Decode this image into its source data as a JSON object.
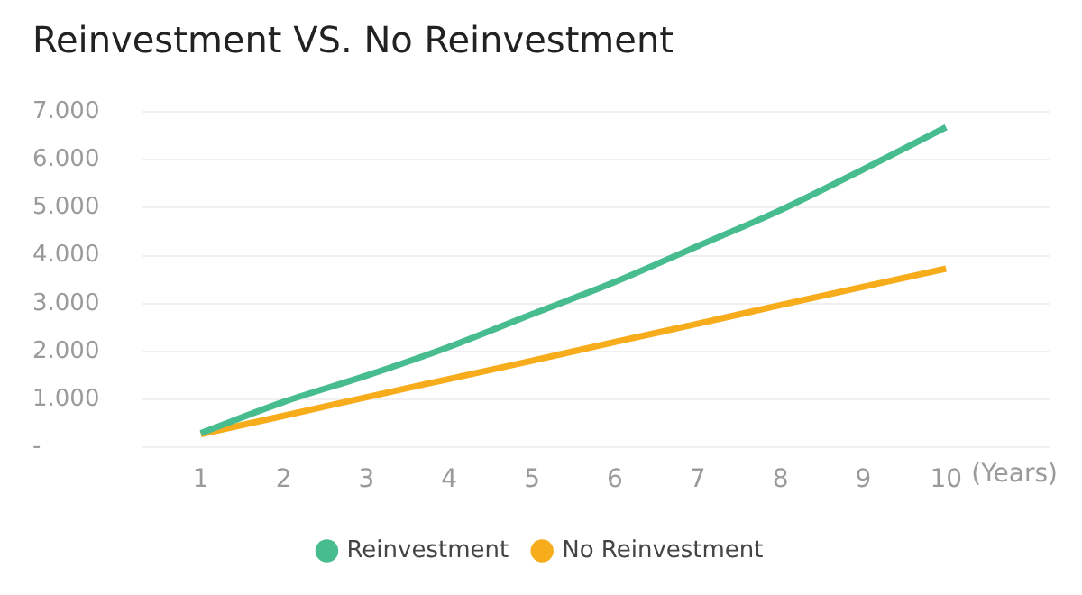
{
  "chart_data": {
    "type": "line",
    "title": "Reinvestment VS. No Reinvestment",
    "xlabel": "(Years)",
    "x": [
      1,
      2,
      3,
      4,
      5,
      6,
      7,
      8,
      9,
      10
    ],
    "series": [
      {
        "name": "Reinvestment",
        "color": "#47bd8f",
        "values": [
          300,
          950,
          1500,
          2100,
          2780,
          3450,
          4200,
          4950,
          5800,
          6680
        ]
      },
      {
        "name": "No Reinvestment",
        "color": "#f7ac1c",
        "values": [
          280,
          660,
          1050,
          1430,
          1810,
          2200,
          2580,
          2970,
          3350,
          3730
        ]
      }
    ],
    "xlim": [
      0.3,
      11.25
    ],
    "xticks": [
      1,
      2,
      3,
      4,
      5,
      6,
      7,
      8,
      9,
      10
    ],
    "ylim": [
      0,
      7000
    ],
    "yticks": [
      {
        "value": 0,
        "label": "-"
      },
      {
        "value": 1000,
        "label": "1.000"
      },
      {
        "value": 2000,
        "label": "2.000"
      },
      {
        "value": 3000,
        "label": "3.000"
      },
      {
        "value": 4000,
        "label": "4.000"
      },
      {
        "value": 5000,
        "label": "5.000"
      },
      {
        "value": 6000,
        "label": "6.000"
      },
      {
        "value": 7000,
        "label": "7.000"
      }
    ],
    "grid": "y",
    "legend": "bottom",
    "marker": "none",
    "line_style": "solid"
  }
}
